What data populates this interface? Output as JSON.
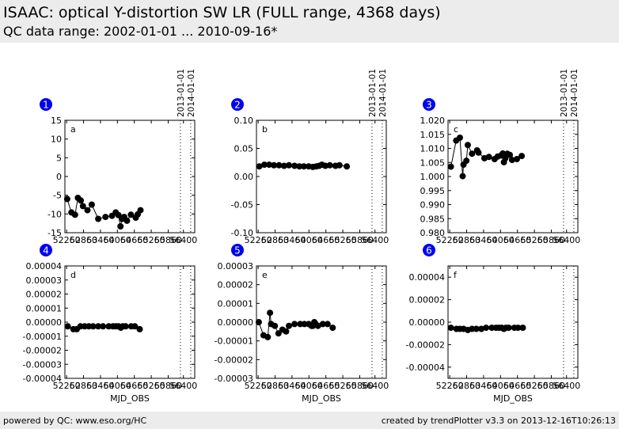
{
  "header": {
    "title": "ISAAC: optical Y-distortion SW LR  (FULL range, 4368 days)",
    "subtitle": "QC data range: 2002-01-01 ... 2010-09-16*"
  },
  "footer": {
    "left": "powered by QC: www.eso.org/HC",
    "right": "created by trendPlotter v3.3 on 2013-12-16T10:26:13"
  },
  "colors": {
    "badge": "#0000ee",
    "marker": "#000000",
    "background": "#ececec"
  },
  "chart_data": [
    {
      "type": "line",
      "panel_number": "1",
      "panel_letter": "a",
      "xlim": [
        52200,
        56800
      ],
      "ylim": [
        -15,
        15
      ],
      "xticks": [
        "52260",
        "52860",
        "53460",
        "54060",
        "54660",
        "55260",
        "55860",
        "56400"
      ],
      "yticks": [
        "15",
        "10",
        "5",
        "0",
        "-5",
        "-10",
        "-15"
      ],
      "xlabel": "",
      "markers": [
        "2013-01-01",
        "2014-01-01"
      ],
      "x": [
        52280,
        52430,
        52560,
        52660,
        52760,
        52840,
        53000,
        53150,
        53380,
        53640,
        53870,
        54000,
        54100,
        54170,
        54230,
        54300,
        54400,
        54540,
        54710,
        54780,
        54880
      ],
      "y": [
        -6.0,
        -9.6,
        -10.2,
        -5.7,
        -6.4,
        -7.9,
        -9.0,
        -7.5,
        -11.3,
        -10.8,
        -10.5,
        -9.6,
        -10.3,
        -13.3,
        -11.3,
        -10.8,
        -11.8,
        -10.2,
        -11.0,
        -10.1,
        -9.0
      ]
    },
    {
      "type": "line",
      "panel_number": "2",
      "panel_letter": "b",
      "xlim": [
        52200,
        56800
      ],
      "ylim": [
        -0.1,
        0.1
      ],
      "xticks": [
        "52260",
        "52860",
        "53460",
        "54060",
        "54660",
        "55260",
        "55860",
        "56400"
      ],
      "yticks": [
        "0.10",
        "0.05",
        "0.00",
        "-0.05",
        "-0.10"
      ],
      "xlabel": "",
      "markers": [
        "2013-01-01",
        "2014-01-01"
      ],
      "x": [
        52300,
        52480,
        52650,
        52820,
        53000,
        53180,
        53350,
        53550,
        53720,
        53880,
        54050,
        54200,
        54320,
        54420,
        54520,
        54640,
        54800,
        55000,
        55140,
        55400
      ],
      "y": [
        0.018,
        0.021,
        0.021,
        0.02,
        0.02,
        0.019,
        0.02,
        0.019,
        0.018,
        0.018,
        0.018,
        0.017,
        0.018,
        0.019,
        0.021,
        0.019,
        0.02,
        0.019,
        0.02,
        0.018
      ]
    },
    {
      "type": "line",
      "panel_number": "3",
      "panel_letter": "c",
      "xlim": [
        52200,
        56800
      ],
      "ylim": [
        0.98,
        1.02
      ],
      "xticks": [
        "52260",
        "52860",
        "53460",
        "54060",
        "54660",
        "55260",
        "55860",
        "56400"
      ],
      "yticks": [
        "1.020",
        "1.015",
        "1.010",
        "1.005",
        "1.000",
        "0.995",
        "0.990",
        "0.985",
        "0.980"
      ],
      "xlabel": "",
      "markers": [
        "2013-01-01",
        "2014-01-01"
      ],
      "x": [
        52300,
        52490,
        52620,
        52720,
        52750,
        52850,
        52900,
        53050,
        53230,
        53280,
        53490,
        53650,
        53850,
        53960,
        54080,
        54140,
        54180,
        54230,
        54300,
        54390,
        54470,
        54640,
        54810
      ],
      "y": [
        1.0035,
        1.0128,
        1.0138,
        1.0001,
        1.0042,
        1.0056,
        1.0112,
        1.0081,
        1.0093,
        1.0085,
        1.0065,
        1.007,
        1.0062,
        1.0071,
        1.0075,
        1.0082,
        1.0051,
        1.0065,
        1.0081,
        1.0077,
        1.0059,
        1.0062,
        1.0073
      ]
    },
    {
      "type": "line",
      "panel_number": "4",
      "panel_letter": "d",
      "xlim": [
        52200,
        56800
      ],
      "ylim": [
        -4e-05,
        4e-05
      ],
      "xticks": [
        "52260",
        "52860",
        "53460",
        "54060",
        "54660",
        "55260",
        "55860",
        "56400"
      ],
      "yticks": [
        "0.00004",
        "0.00003",
        "0.00002",
        "0.00001",
        "0.00000",
        "-0.00001",
        "-0.00002",
        "-0.00003",
        "-0.00004"
      ],
      "xlabel": "MJD_OBS",
      "markers": [],
      "x": [
        52300,
        52500,
        52620,
        52750,
        52900,
        53050,
        53200,
        53380,
        53550,
        53750,
        53900,
        54000,
        54100,
        54180,
        54250,
        54350,
        54550,
        54680,
        54850
      ],
      "y": [
        -3e-06,
        -5e-06,
        -5e-06,
        -3e-06,
        -3e-06,
        -3e-06,
        -3e-06,
        -3e-06,
        -3e-06,
        -3e-06,
        -3e-06,
        -3e-06,
        -3e-06,
        -4e-06,
        -3e-06,
        -3e-06,
        -3e-06,
        -3e-06,
        -5e-06
      ]
    },
    {
      "type": "line",
      "panel_number": "5",
      "panel_letter": "e",
      "xlim": [
        52200,
        56800
      ],
      "ylim": [
        -3e-05,
        3e-05
      ],
      "xticks": [
        "52260",
        "52860",
        "53460",
        "54060",
        "54660",
        "55260",
        "55860",
        "56400"
      ],
      "yticks": [
        "0.00003",
        "0.00002",
        "0.00001",
        "0.00000",
        "-0.00001",
        "-0.00002",
        "-0.00003"
      ],
      "xlabel": "MJD_OBS",
      "markers": [],
      "x": [
        52280,
        52450,
        52600,
        52680,
        52720,
        52850,
        52980,
        53120,
        53250,
        53350,
        53550,
        53750,
        53900,
        54050,
        54150,
        54200,
        54250,
        54300,
        54380,
        54550,
        54720,
        54900
      ],
      "y": [
        0.0,
        -7e-06,
        -8e-06,
        5e-06,
        -1e-06,
        -2e-06,
        -6e-06,
        -4e-06,
        -5e-06,
        -2e-06,
        -1e-06,
        -1e-06,
        -1e-06,
        -1e-06,
        -2e-06,
        -2e-06,
        0.0,
        -1e-06,
        -2e-06,
        -1e-06,
        -1e-06,
        -3e-06
      ]
    },
    {
      "type": "line",
      "panel_number": "6",
      "panel_letter": "f",
      "xlim": [
        52200,
        56800
      ],
      "ylim": [
        -5e-05,
        5e-05
      ],
      "xticks": [
        "52260",
        "52860",
        "53460",
        "54060",
        "54660",
        "55260",
        "55860",
        "56400"
      ],
      "yticks": [
        "0.00004",
        "0.00002",
        "0.00000",
        "-0.00002",
        "-0.00004"
      ],
      "xlabel": "MJD_OBS",
      "markers": [],
      "x": [
        52300,
        52500,
        52620,
        52750,
        52900,
        53050,
        53200,
        53380,
        53550,
        53750,
        53900,
        54000,
        54100,
        54180,
        54250,
        54350,
        54550,
        54680,
        54850
      ],
      "y": [
        -5e-06,
        -6e-06,
        -6e-06,
        -6e-06,
        -7e-06,
        -6e-06,
        -6e-06,
        -6e-06,
        -5e-06,
        -5e-06,
        -5e-06,
        -5e-06,
        -5e-06,
        -6e-06,
        -5e-06,
        -5e-06,
        -5e-06,
        -5e-06,
        -5e-06
      ]
    }
  ]
}
